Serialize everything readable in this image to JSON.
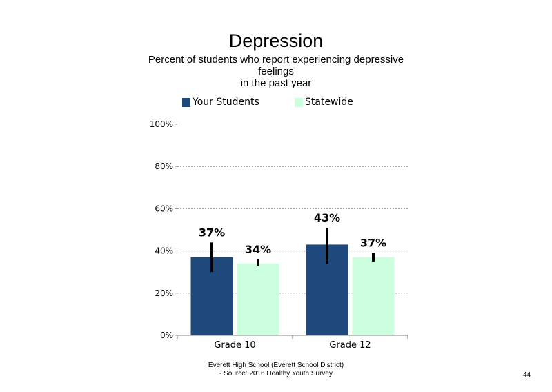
{
  "title": "Depression",
  "subtitle_lines": [
    "Percent of students who report experiencing depressive",
    "feelings",
    "in the past year"
  ],
  "legend": [
    {
      "label": "Your Students",
      "color": "#1f497d"
    },
    {
      "label": "Statewide",
      "color": "#ccffdd"
    }
  ],
  "footer": {
    "line1": "Everett High School (Everett School District)",
    "line2": "- Source: 2016 Healthy Youth Survey"
  },
  "page_number": "44",
  "chart_data": {
    "type": "bar",
    "categories": [
      "Grade 10",
      "Grade 12"
    ],
    "series": [
      {
        "name": "Your Students",
        "color": "#1f497d",
        "values": [
          37,
          43
        ],
        "labels": [
          "37%",
          "43%"
        ],
        "error_low": [
          30,
          34
        ],
        "error_high": [
          44,
          51
        ]
      },
      {
        "name": "Statewide",
        "color": "#ccffdd",
        "values": [
          34,
          37
        ],
        "labels": [
          "34%",
          "37%"
        ],
        "error_low": [
          33,
          35
        ],
        "error_high": [
          36,
          39
        ]
      }
    ],
    "ylim": [
      0,
      100
    ],
    "yticks": [
      0,
      20,
      40,
      60,
      80,
      100
    ],
    "ytick_labels": [
      "0%",
      "20%",
      "40%",
      "60%",
      "80%",
      "100%"
    ],
    "grid": true,
    "legend_position": "top"
  }
}
